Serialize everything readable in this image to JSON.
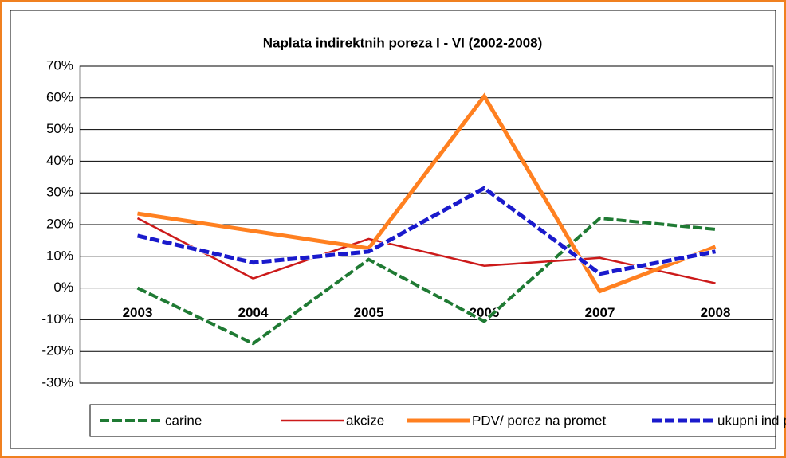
{
  "chart_data": {
    "type": "line",
    "title": "Naplata indirektnih poreza I - VI (2002-2008)",
    "categories": [
      "2003",
      "2004",
      "2005",
      "2006",
      "2007",
      "2008"
    ],
    "series": [
      {
        "name": "carine",
        "color": "#1f7a33",
        "style": "dashed",
        "width": 4,
        "values": [
          0,
          -17.5,
          9,
          -10.5,
          22,
          18.5
        ]
      },
      {
        "name": "akcize",
        "color": "#cc1a1a",
        "style": "solid",
        "width": 2.5,
        "values": [
          22,
          3,
          15.5,
          7,
          9.5,
          1.5
        ]
      },
      {
        "name": "PDV/ porez na promet",
        "color": "#ff8020",
        "style": "solid",
        "width": 5,
        "values": [
          23.5,
          18,
          12.5,
          60.5,
          -1,
          13
        ]
      },
      {
        "name": "ukupni ind por",
        "color": "#1a1acc",
        "style": "dashed",
        "width": 5,
        "values": [
          16.5,
          8,
          11.5,
          31.5,
          4.5,
          11.5
        ]
      }
    ],
    "ylim": [
      -30,
      70
    ],
    "yticks": [
      {
        "value": -30,
        "label": "-30%"
      },
      {
        "value": -20,
        "label": "-20%"
      },
      {
        "value": -10,
        "label": "-10%"
      },
      {
        "value": 0,
        "label": "0%"
      },
      {
        "value": 10,
        "label": "10%"
      },
      {
        "value": 20,
        "label": "20%"
      },
      {
        "value": 30,
        "label": "30%"
      },
      {
        "value": 40,
        "label": "40%"
      },
      {
        "value": 50,
        "label": "50%"
      },
      {
        "value": 60,
        "label": "60%"
      },
      {
        "value": 70,
        "label": "70%"
      }
    ],
    "grid": true
  }
}
